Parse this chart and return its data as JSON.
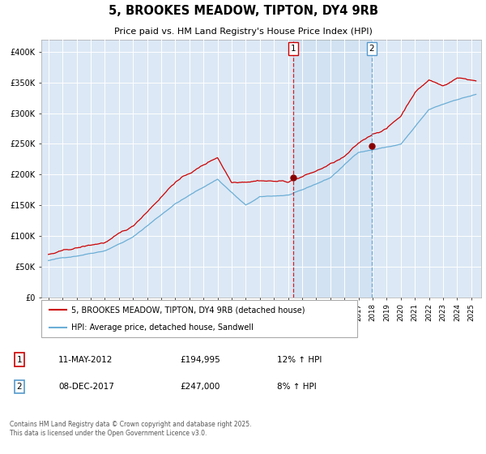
{
  "title": "5, BROOKES MEADOW, TIPTON, DY4 9RB",
  "subtitle": "Price paid vs. HM Land Registry's House Price Index (HPI)",
  "legend_line1": "5, BROOKES MEADOW, TIPTON, DY4 9RB (detached house)",
  "legend_line2": "HPI: Average price, detached house, Sandwell",
  "annotation1_date": "11-MAY-2012",
  "annotation1_price": "£194,995",
  "annotation1_hpi": "12% ↑ HPI",
  "annotation2_date": "08-DEC-2017",
  "annotation2_price": "£247,000",
  "annotation2_hpi": "8% ↑ HPI",
  "footer": "Contains HM Land Registry data © Crown copyright and database right 2025.\nThis data is licensed under the Open Government Licence v3.0.",
  "sale1_date_num": 2012.36,
  "sale1_price": 194995,
  "sale2_date_num": 2017.94,
  "sale2_price": 247000,
  "hpi_color": "#6baed6",
  "price_color": "#cc0000",
  "background_color": "#dce8f5",
  "ylim": [
    0,
    420000
  ],
  "ytick_vals": [
    0,
    50000,
    100000,
    150000,
    200000,
    250000,
    300000,
    350000,
    400000
  ],
  "ytick_labels": [
    "£0",
    "£50K",
    "£100K",
    "£150K",
    "£200K",
    "£250K",
    "£300K",
    "£350K",
    "£400K"
  ],
  "xlim_start": 1994.5,
  "xlim_end": 2025.7,
  "xtick_start": 1995,
  "xtick_end": 2025
}
